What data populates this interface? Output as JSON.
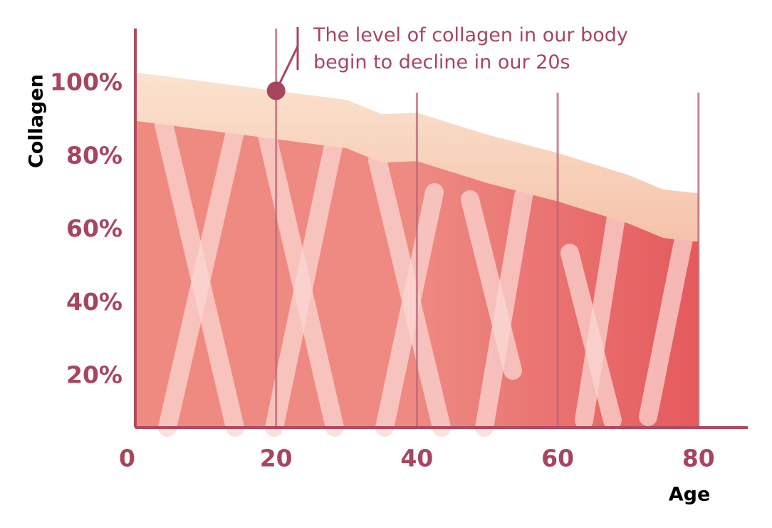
{
  "chart_data": {
    "type": "area",
    "y_label": "Collagen",
    "x_label": "Age",
    "annotation": {
      "lines": [
        "The level of collagen in our body",
        "begin to decline in our 20s"
      ],
      "x": 20,
      "y": 98
    },
    "x": [
      0,
      20,
      30,
      35,
      40,
      50,
      60,
      65,
      70,
      75,
      80
    ],
    "series": [
      {
        "color": "#e8636a",
        "values": [
          103,
          98,
          95.5,
          91.6,
          92,
          86,
          81,
          78,
          75,
          71,
          70
        ]
      }
    ],
    "xlim": [
      0,
      87
    ],
    "ylim": [
      6,
      115
    ],
    "xticks": [
      0,
      20,
      40,
      60,
      80
    ],
    "yticks": [
      {
        "value": 20,
        "label": "20%"
      },
      {
        "value": 40,
        "label": "40%"
      },
      {
        "value": 60,
        "label": "60%"
      },
      {
        "value": 80,
        "label": "80%"
      },
      {
        "value": 100,
        "label": "100%"
      }
    ],
    "grid": true
  }
}
